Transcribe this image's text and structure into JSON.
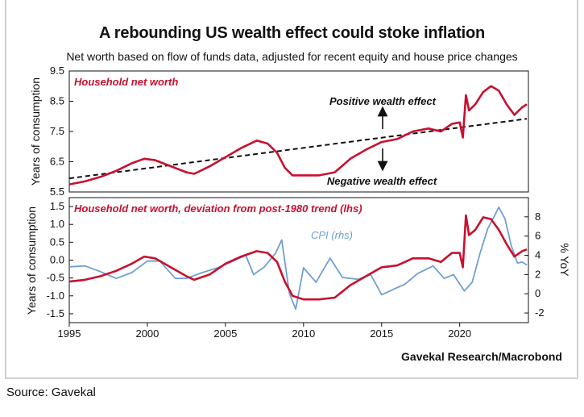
{
  "title": "A rebounding US wealth effect could stoke inflation",
  "subtitle": "Net worth based on flow of funds data, adjusted for recent equity and house price changes",
  "source": "Source: Gavekal",
  "credit": "Gavekal Research/Macrobond",
  "colors": {
    "networth": "#c8102e",
    "cpi": "#6fa0d2",
    "trend": "#111111",
    "axis": "#111111"
  },
  "chart_data": [
    {
      "type": "line",
      "title": "Household net worth",
      "ylabel": "Years of consumption",
      "xlim": [
        1995,
        2024.4
      ],
      "ylim": [
        5.5,
        9.5
      ],
      "yticks": [
        "9.5",
        "8.5",
        "7.5",
        "6.5",
        "5.5"
      ],
      "ytick_values": [
        9.5,
        8.5,
        7.5,
        6.5,
        5.5
      ],
      "annotations": [
        "Positive wealth effect",
        "Negative wealth effect"
      ],
      "trend": {
        "name": "post-1980 trend",
        "x": [
          1995,
          2024.3
        ],
        "y": [
          5.95,
          7.92
        ]
      },
      "series": [
        {
          "name": "Household net worth",
          "x": [
            1995,
            1996,
            1997,
            1998,
            1999,
            1999.8,
            2000.5,
            2001.5,
            2002.5,
            2003,
            2004,
            2005,
            2006,
            2007,
            2007.7,
            2008.3,
            2008.8,
            2009.3,
            2010,
            2011,
            2012,
            2013,
            2014,
            2015,
            2016,
            2017,
            2018,
            2018.8,
            2019.5,
            2020,
            2020.2,
            2020.4,
            2020.6,
            2021,
            2021.5,
            2022,
            2022.5,
            2023,
            2023.5,
            2024,
            2024.3
          ],
          "y": [
            5.75,
            5.85,
            6.0,
            6.2,
            6.45,
            6.6,
            6.55,
            6.35,
            6.15,
            6.1,
            6.35,
            6.65,
            6.95,
            7.2,
            7.1,
            6.8,
            6.3,
            6.05,
            6.05,
            6.05,
            6.15,
            6.6,
            6.9,
            7.15,
            7.25,
            7.5,
            7.6,
            7.5,
            7.75,
            7.8,
            7.3,
            8.7,
            8.2,
            8.4,
            8.8,
            9.0,
            8.85,
            8.4,
            8.05,
            8.3,
            8.4
          ]
        }
      ]
    },
    {
      "type": "line",
      "title": "Household net worth, deviation from post-1980 trend (lhs)",
      "ylabel": "Years of consumption",
      "y2label": "% YoY",
      "xlim": [
        1995,
        2024.4
      ],
      "ylim": [
        -1.75,
        1.75
      ],
      "y2lim": [
        -3,
        10
      ],
      "yticks": [
        "1.5",
        "1.0",
        "0.5",
        "0.0",
        "-0.5",
        "-1.0",
        "-1.5"
      ],
      "ytick_values": [
        1.5,
        1.0,
        0.5,
        0.0,
        -0.5,
        -1.0,
        -1.5
      ],
      "y2ticks": [
        "8",
        "6",
        "4",
        "2",
        "0",
        "-2"
      ],
      "y2tick_values": [
        8,
        6,
        4,
        2,
        0,
        -2
      ],
      "xticks": [
        "1995",
        "2000",
        "2005",
        "2010",
        "2015",
        "2020"
      ],
      "xtick_values": [
        1995,
        2000,
        2005,
        2010,
        2015,
        2020
      ],
      "series": [
        {
          "name": "Household net worth, deviation from post-1980 trend (lhs)",
          "axis": "left",
          "x": [
            1995,
            1996,
            1997,
            1998,
            1999,
            1999.8,
            2000.5,
            2001.5,
            2002.5,
            2003,
            2004,
            2005,
            2006,
            2007,
            2007.7,
            2008.3,
            2008.8,
            2009.3,
            2010,
            2011,
            2012,
            2013,
            2014,
            2015,
            2016,
            2017,
            2018,
            2018.8,
            2019.5,
            2020,
            2020.2,
            2020.4,
            2020.6,
            2021,
            2021.5,
            2022,
            2022.5,
            2023,
            2023.5,
            2024,
            2024.3
          ],
          "y": [
            -0.6,
            -0.55,
            -0.45,
            -0.3,
            -0.1,
            0.1,
            0.05,
            -0.2,
            -0.45,
            -0.55,
            -0.4,
            -0.1,
            0.1,
            0.25,
            0.2,
            -0.05,
            -0.6,
            -1.0,
            -1.1,
            -1.1,
            -1.05,
            -0.7,
            -0.45,
            -0.2,
            -0.15,
            0.05,
            0.05,
            -0.05,
            0.2,
            0.2,
            -0.2,
            1.25,
            0.7,
            0.85,
            1.2,
            1.15,
            0.85,
            0.45,
            0.1,
            0.25,
            0.3
          ]
        },
        {
          "name": "CPI (rhs)",
          "axis": "right",
          "x": [
            1995,
            1996,
            1997,
            1998,
            1999,
            2000,
            2000.8,
            2001.8,
            2002.5,
            2003.5,
            2004.5,
            2005.5,
            2006.3,
            2006.8,
            2007.5,
            2008.2,
            2008.6,
            2009.1,
            2009.5,
            2010,
            2010.8,
            2011.7,
            2012.5,
            2013.5,
            2014.3,
            2015,
            2015.8,
            2016.5,
            2017.3,
            2018.3,
            2019,
            2019.6,
            2020.3,
            2020.8,
            2021.3,
            2021.8,
            2022.2,
            2022.5,
            2022.9,
            2023.3,
            2023.7,
            2024,
            2024.3
          ],
          "y": [
            2.8,
            2.9,
            2.3,
            1.6,
            2.2,
            3.4,
            3.4,
            1.6,
            1.6,
            2.2,
            2.7,
            3.4,
            4.0,
            2.0,
            2.8,
            4.2,
            5.6,
            0.0,
            -1.6,
            2.7,
            1.2,
            3.7,
            1.7,
            1.5,
            2.0,
            -0.1,
            0.5,
            1.0,
            2.1,
            2.9,
            1.6,
            2.0,
            0.3,
            1.2,
            4.2,
            6.8,
            8.0,
            9.0,
            7.8,
            5.0,
            3.2,
            3.3,
            3.0
          ]
        }
      ]
    }
  ]
}
